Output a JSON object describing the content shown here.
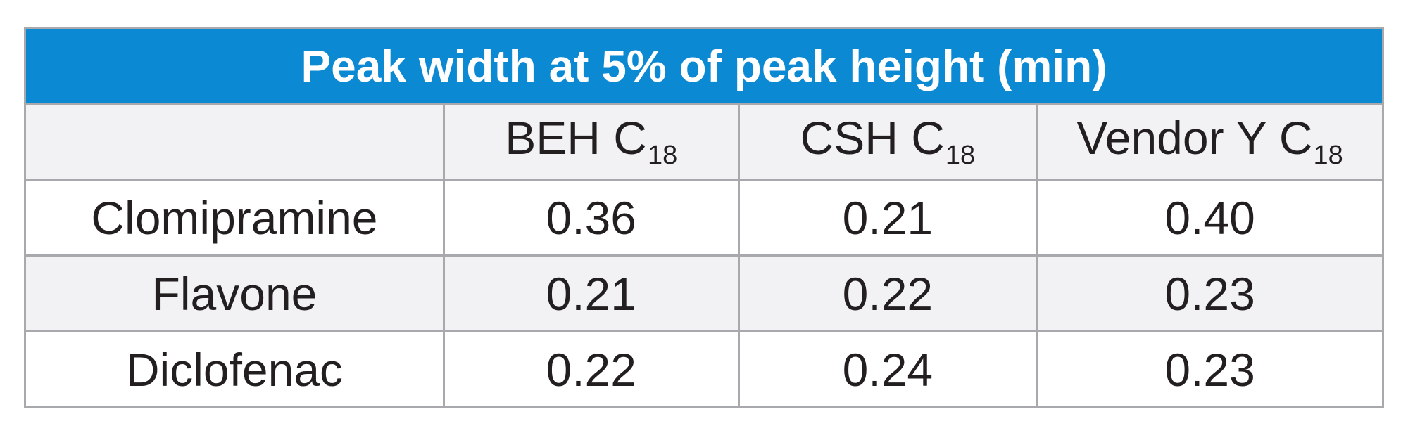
{
  "table": {
    "title": "Peak width at 5% of peak height (min)",
    "columns": [
      {
        "base": "BEH C",
        "subscript": "18"
      },
      {
        "base": "CSH C",
        "subscript": "18"
      },
      {
        "base": "Vendor Y C",
        "subscript": "18"
      }
    ],
    "rows": [
      {
        "label": "Clomipramine",
        "values": [
          "0.36",
          "0.21",
          "0.40"
        ]
      },
      {
        "label": "Flavone",
        "values": [
          "0.21",
          "0.22",
          "0.23"
        ]
      },
      {
        "label": "Diclofenac",
        "values": [
          "0.22",
          "0.24",
          "0.23"
        ]
      }
    ]
  },
  "colors": {
    "title_background": "#0b89d2",
    "title_text": "#ffffff",
    "shaded_row": "#f2f2f4",
    "border": "#a7a9ac"
  }
}
